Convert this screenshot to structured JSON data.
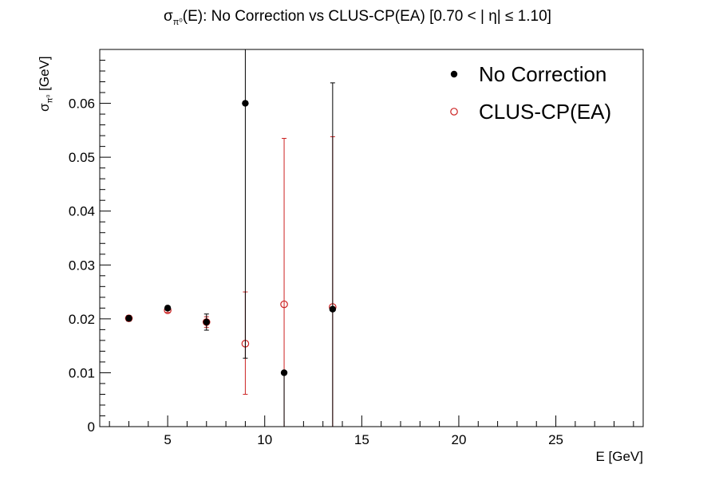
{
  "chart_data": {
    "type": "scatter",
    "title": {
      "sigma": "σ",
      "sub": "π⁰",
      "rest": "(E): No Correction vs CLUS-CP(EA)   [0.70 < |   η| ≤ 1.10]"
    },
    "xlabel": "E [GeV]",
    "ylabel": {
      "sigma": "σ",
      "sub": "π⁰",
      "rest": " [GeV]"
    },
    "xlim": [
      1.5,
      29.5
    ],
    "ylim": [
      0,
      0.07
    ],
    "x_ticks": [
      {
        "value": 5,
        "label": "5"
      },
      {
        "value": 10,
        "label": "10"
      },
      {
        "value": 15,
        "label": "15"
      },
      {
        "value": 20,
        "label": "20"
      },
      {
        "value": 25,
        "label": "25"
      }
    ],
    "y_ticks": [
      {
        "value": 0,
        "label": "0"
      },
      {
        "value": 0.01,
        "label": "0.01"
      },
      {
        "value": 0.02,
        "label": "0.02"
      },
      {
        "value": 0.03,
        "label": "0.03"
      },
      {
        "value": 0.04,
        "label": "0.04"
      },
      {
        "value": 0.05,
        "label": "0.05"
      },
      {
        "value": 0.06,
        "label": "0.06"
      }
    ],
    "grid": false,
    "legend_position": "top-right",
    "series": [
      {
        "name": "No Correction",
        "marker": "filled-circle",
        "color": "#000000",
        "points": [
          {
            "x": 3,
            "y": 0.0201,
            "err_low": 0.0005,
            "err_high": 0.0005
          },
          {
            "x": 5,
            "y": 0.022,
            "err_low": 0.0004,
            "err_high": 0.0004
          },
          {
            "x": 7,
            "y": 0.0194,
            "err_low": 0.0015,
            "err_high": 0.0015
          },
          {
            "x": 9,
            "y": 0.06,
            "err_low": 0.0473,
            "err_high": 0.03
          },
          {
            "x": 11,
            "y": 0.01,
            "err_low": 0.01,
            "err_high": 0.0
          },
          {
            "x": 13.5,
            "y": 0.0218,
            "err_low": 0.0218,
            "err_high": 0.042
          }
        ]
      },
      {
        "name": "CLUS-CP(EA)",
        "marker": "open-circle",
        "color": "#cc2222",
        "points": [
          {
            "x": 3,
            "y": 0.0201,
            "err_low": 0.0004,
            "err_high": 0.0004
          },
          {
            "x": 5,
            "y": 0.0216,
            "err_low": 0.0004,
            "err_high": 0.0004
          },
          {
            "x": 7,
            "y": 0.0194,
            "err_low": 0.001,
            "err_high": 0.001
          },
          {
            "x": 9,
            "y": 0.0154,
            "err_low": 0.0094,
            "err_high": 0.0096
          },
          {
            "x": 11,
            "y": 0.0227,
            "err_low": 0.0227,
            "err_high": 0.0308
          },
          {
            "x": 13.5,
            "y": 0.0222,
            "err_low": 0.0222,
            "err_high": 0.0316
          }
        ]
      }
    ]
  }
}
